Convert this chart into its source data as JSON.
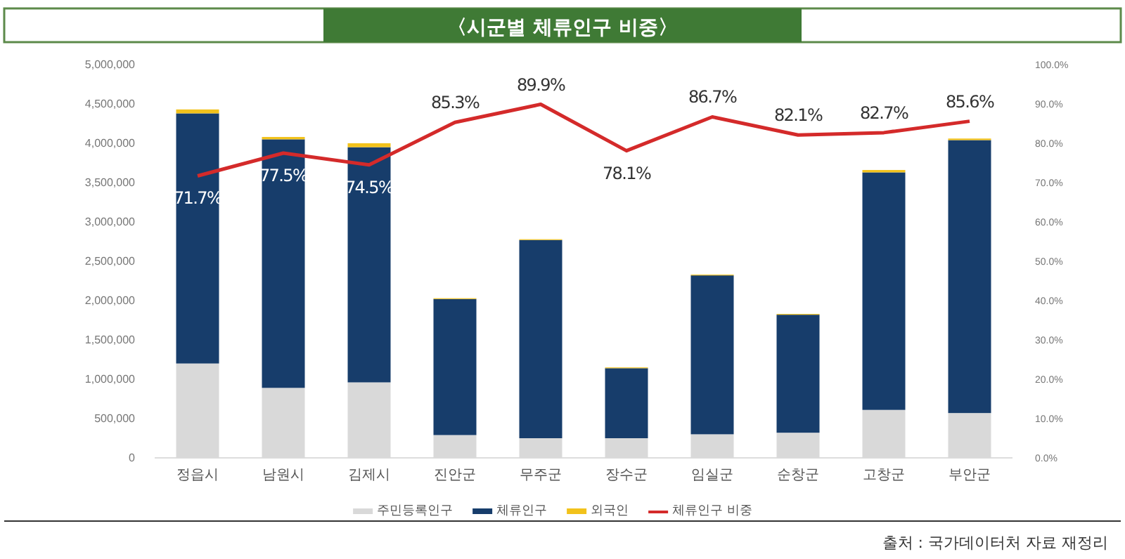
{
  "chart_data": {
    "type": "bar",
    "title": "〈시군별 체류인구 비중〉",
    "stacked": true,
    "categories": [
      "정읍시",
      "남원시",
      "김제시",
      "진안군",
      "무주군",
      "장수군",
      "임실군",
      "순창군",
      "고창군",
      "부안군"
    ],
    "series": [
      {
        "name": "주민등록인구",
        "color": "#d9d9d9",
        "values": [
          1200000,
          890000,
          960000,
          290000,
          250000,
          250000,
          300000,
          320000,
          610000,
          570000
        ]
      },
      {
        "name": "체류인구",
        "color": "#173d6b",
        "values": [
          3180000,
          3160000,
          2990000,
          1730000,
          2520000,
          890000,
          2020000,
          1500000,
          3020000,
          3470000
        ]
      },
      {
        "name": "외국인",
        "color": "#f2c21b",
        "values": [
          50000,
          30000,
          50000,
          10000,
          10000,
          10000,
          10000,
          10000,
          30000,
          20000
        ]
      },
      {
        "name": "체류인구 비중",
        "type": "line",
        "axis": "y2",
        "color": "#d42a2a",
        "values": [
          71.7,
          77.5,
          74.5,
          85.3,
          89.9,
          78.1,
          86.7,
          82.1,
          82.7,
          85.6
        ],
        "value_labels": [
          "71.7%",
          "77.5%",
          "74.5%",
          "85.3%",
          "89.9%",
          "78.1%",
          "86.7%",
          "82.1%",
          "82.7%",
          "85.6%"
        ]
      }
    ],
    "ylim": [
      0,
      5000000
    ],
    "yticks": [
      {
        "value": 0,
        "label": "0"
      },
      {
        "value": 500000,
        "label": "500,000"
      },
      {
        "value": 1000000,
        "label": "1,000,000"
      },
      {
        "value": 1500000,
        "label": "1,500,000"
      },
      {
        "value": 2000000,
        "label": "2,000,000"
      },
      {
        "value": 2500000,
        "label": "2,500,000"
      },
      {
        "value": 3000000,
        "label": "3,000,000"
      },
      {
        "value": 3500000,
        "label": "3,500,000"
      },
      {
        "value": 4000000,
        "label": "4,000,000"
      },
      {
        "value": 4500000,
        "label": "4,500,000"
      },
      {
        "value": 5000000,
        "label": "5,000,000"
      }
    ],
    "y2lim": [
      0,
      100
    ],
    "y2ticks": [
      {
        "value": 0,
        "label": "0.0%"
      },
      {
        "value": 10,
        "label": "10.0%"
      },
      {
        "value": 20,
        "label": "20.0%"
      },
      {
        "value": 30,
        "label": "30.0%"
      },
      {
        "value": 40,
        "label": "40.0%"
      },
      {
        "value": 50,
        "label": "50.0%"
      },
      {
        "value": 60,
        "label": "60.0%"
      },
      {
        "value": 70,
        "label": "70.0%"
      },
      {
        "value": 80,
        "label": "80.0%"
      },
      {
        "value": 90,
        "label": "90.0%"
      },
      {
        "value": 100,
        "label": "100.0%"
      }
    ],
    "grid": false,
    "legend": "bottom",
    "marker": "none",
    "annotations": [
      "출처 : 국가데이터처 자료 재정리"
    ]
  }
}
